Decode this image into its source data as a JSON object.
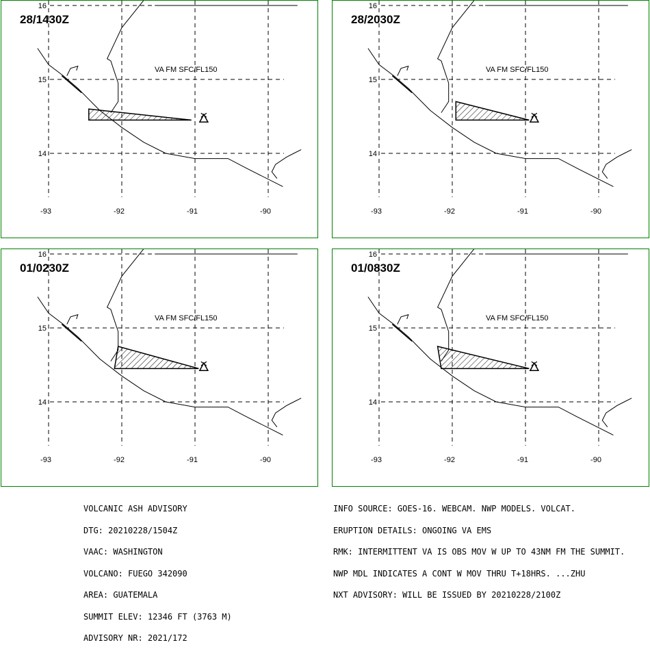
{
  "panels": [
    {
      "time": "28/1430Z",
      "va_label": "VA FM SFC/FL150"
    },
    {
      "time": "28/2030Z",
      "va_label": "VA FM SFC/FL150"
    },
    {
      "time": "01/0230Z",
      "va_label": "VA FM SFC/FL150"
    },
    {
      "time": "01/0830Z",
      "va_label": "VA FM SFC/FL150"
    }
  ],
  "lat_labels": [
    "16",
    "15",
    "14"
  ],
  "lon_labels": [
    "-93",
    "-92",
    "-91",
    "-90"
  ],
  "ash_polygons": [
    [
      [
        -92.45,
        14.6
      ],
      [
        -91.05,
        14.45
      ],
      [
        -92.45,
        14.45
      ]
    ],
    [
      [
        -91.95,
        14.7
      ],
      [
        -90.95,
        14.45
      ],
      [
        -91.95,
        14.45
      ]
    ],
    [
      [
        -92.05,
        14.75
      ],
      [
        -90.95,
        14.45
      ],
      [
        -92.1,
        14.45
      ]
    ],
    [
      [
        -92.2,
        14.75
      ],
      [
        -90.95,
        14.45
      ],
      [
        -92.15,
        14.45
      ]
    ]
  ],
  "volcano": {
    "name": "FUEGO",
    "lat": 14.47,
    "lon": -90.88
  },
  "advisory_left": [
    "VOLCANIC ASH ADVISORY",
    "DTG: 20210228/1504Z",
    "VAAC: WASHINGTON",
    "VOLCANO: FUEGO 342090",
    "AREA: GUATEMALA",
    "SUMMIT ELEV: 12346 FT (3763 M)",
    "ADVISORY NR: 2021/172"
  ],
  "advisory_right": [
    "INFO SOURCE: GOES-16. WEBCAM. NWP MODELS. VOLCAT.",
    "ERUPTION DETAILS: ONGOING VA EMS",
    "RMK: INTERMITTENT VA IS OBS MOV W UP TO 43NM FM THE SUMMIT.",
    "NWP MDL INDICATES A CONT W MOV THRU T+18HRS. ...ZHU",
    "NXT ADVISORY: WILL BE ISSUED BY 20210228/2100Z"
  ],
  "colors": {
    "frame": "#008000",
    "ink": "#000000"
  }
}
